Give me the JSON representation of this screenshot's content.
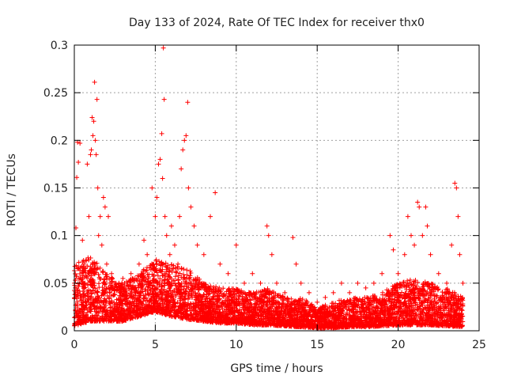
{
  "chart_data": {
    "type": "scatter",
    "title": "Day 133 of 2024, Rate Of TEC Index for receiver thx0",
    "xlabel": "GPS time / hours",
    "ylabel": "ROTI / TECUs",
    "xlim": [
      0,
      25
    ],
    "ylim": [
      0,
      0.3
    ],
    "x_ticks": [
      0,
      5,
      10,
      15,
      20,
      25
    ],
    "x_tick_labels": [
      "0",
      "5",
      "10",
      "15",
      "20",
      "25"
    ],
    "y_ticks": [
      0,
      0.05,
      0.1,
      0.15,
      0.2,
      0.25,
      0.3
    ],
    "y_tick_labels": [
      "0",
      "0.05",
      "0.1",
      "0.15",
      "0.2",
      "0.25",
      "0.3"
    ],
    "grid": true,
    "marker": "plus",
    "series": [
      {
        "name": "ROTI",
        "color": "#ff0000",
        "points": [
          [
            0.1,
            0.108
          ],
          [
            0.15,
            0.161
          ],
          [
            0.2,
            0.198
          ],
          [
            0.25,
            0.177
          ],
          [
            0.35,
            0.197
          ],
          [
            0.5,
            0.095
          ],
          [
            0.6,
            0.07
          ],
          [
            0.8,
            0.175
          ],
          [
            0.9,
            0.12
          ],
          [
            1.0,
            0.185
          ],
          [
            1.05,
            0.19
          ],
          [
            1.1,
            0.224
          ],
          [
            1.15,
            0.205
          ],
          [
            1.2,
            0.22
          ],
          [
            1.25,
            0.261
          ],
          [
            1.3,
            0.2
          ],
          [
            1.35,
            0.185
          ],
          [
            1.4,
            0.243
          ],
          [
            1.45,
            0.15
          ],
          [
            1.5,
            0.1
          ],
          [
            1.6,
            0.12
          ],
          [
            1.7,
            0.09
          ],
          [
            1.8,
            0.14
          ],
          [
            1.9,
            0.13
          ],
          [
            2.0,
            0.07
          ],
          [
            2.1,
            0.12
          ],
          [
            2.3,
            0.06
          ],
          [
            2.5,
            0.05
          ],
          [
            3.0,
            0.055
          ],
          [
            3.5,
            0.06
          ],
          [
            4.0,
            0.07
          ],
          [
            4.3,
            0.095
          ],
          [
            4.5,
            0.08
          ],
          [
            4.8,
            0.15
          ],
          [
            5.0,
            0.12
          ],
          [
            5.1,
            0.14
          ],
          [
            5.2,
            0.175
          ],
          [
            5.3,
            0.18
          ],
          [
            5.4,
            0.207
          ],
          [
            5.45,
            0.16
          ],
          [
            5.5,
            0.297
          ],
          [
            5.55,
            0.243
          ],
          [
            5.6,
            0.12
          ],
          [
            5.7,
            0.1
          ],
          [
            5.9,
            0.08
          ],
          [
            6.0,
            0.11
          ],
          [
            6.2,
            0.09
          ],
          [
            6.4,
            0.07
          ],
          [
            6.5,
            0.12
          ],
          [
            6.6,
            0.17
          ],
          [
            6.7,
            0.19
          ],
          [
            6.8,
            0.2
          ],
          [
            6.9,
            0.205
          ],
          [
            7.0,
            0.24
          ],
          [
            7.05,
            0.15
          ],
          [
            7.2,
            0.13
          ],
          [
            7.4,
            0.11
          ],
          [
            7.6,
            0.09
          ],
          [
            8.0,
            0.08
          ],
          [
            8.4,
            0.12
          ],
          [
            8.7,
            0.145
          ],
          [
            9.0,
            0.07
          ],
          [
            9.5,
            0.06
          ],
          [
            10.0,
            0.09
          ],
          [
            10.5,
            0.05
          ],
          [
            11.0,
            0.06
          ],
          [
            11.5,
            0.05
          ],
          [
            11.9,
            0.11
          ],
          [
            12.0,
            0.1
          ],
          [
            12.2,
            0.08
          ],
          [
            12.5,
            0.05
          ],
          [
            13.0,
            0.04
          ],
          [
            13.5,
            0.098
          ],
          [
            13.7,
            0.07
          ],
          [
            14.0,
            0.05
          ],
          [
            14.5,
            0.04
          ],
          [
            15.0,
            0.03
          ],
          [
            15.5,
            0.035
          ],
          [
            16.0,
            0.04
          ],
          [
            16.5,
            0.05
          ],
          [
            17.0,
            0.04
          ],
          [
            17.5,
            0.05
          ],
          [
            18.0,
            0.045
          ],
          [
            18.5,
            0.05
          ],
          [
            19.0,
            0.06
          ],
          [
            19.5,
            0.1
          ],
          [
            19.7,
            0.085
          ],
          [
            20.0,
            0.06
          ],
          [
            20.4,
            0.08
          ],
          [
            20.6,
            0.12
          ],
          [
            20.8,
            0.1
          ],
          [
            21.0,
            0.09
          ],
          [
            21.2,
            0.135
          ],
          [
            21.3,
            0.13
          ],
          [
            21.5,
            0.1
          ],
          [
            21.7,
            0.13
          ],
          [
            21.8,
            0.11
          ],
          [
            22.0,
            0.08
          ],
          [
            22.5,
            0.06
          ],
          [
            23.0,
            0.05
          ],
          [
            23.3,
            0.09
          ],
          [
            23.5,
            0.155
          ],
          [
            23.6,
            0.15
          ],
          [
            23.7,
            0.12
          ],
          [
            23.8,
            0.08
          ],
          [
            24.0,
            0.05
          ]
        ]
      }
    ],
    "background_cloud": {
      "description_of_density": "dense cloud of ROTI values mostly below 0.05 across 0-24 h",
      "envelope_hours": [
        0,
        1,
        2,
        3,
        4,
        5,
        6,
        7,
        8,
        9,
        10,
        11,
        12,
        13,
        14,
        15,
        16,
        17,
        18,
        19,
        20,
        21,
        22,
        23,
        24
      ],
      "envelope_upper": [
        0.07,
        0.08,
        0.06,
        0.05,
        0.06,
        0.075,
        0.07,
        0.065,
        0.05,
        0.045,
        0.045,
        0.04,
        0.045,
        0.035,
        0.035,
        0.025,
        0.03,
        0.035,
        0.035,
        0.04,
        0.05,
        0.055,
        0.05,
        0.045,
        0.035
      ],
      "envelope_lower": [
        0.005,
        0.01,
        0.01,
        0.01,
        0.015,
        0.02,
        0.015,
        0.012,
        0.01,
        0.008,
        0.008,
        0.006,
        0.006,
        0.005,
        0.004,
        0.003,
        0.003,
        0.004,
        0.004,
        0.005,
        0.006,
        0.006,
        0.006,
        0.005,
        0.004
      ]
    }
  }
}
